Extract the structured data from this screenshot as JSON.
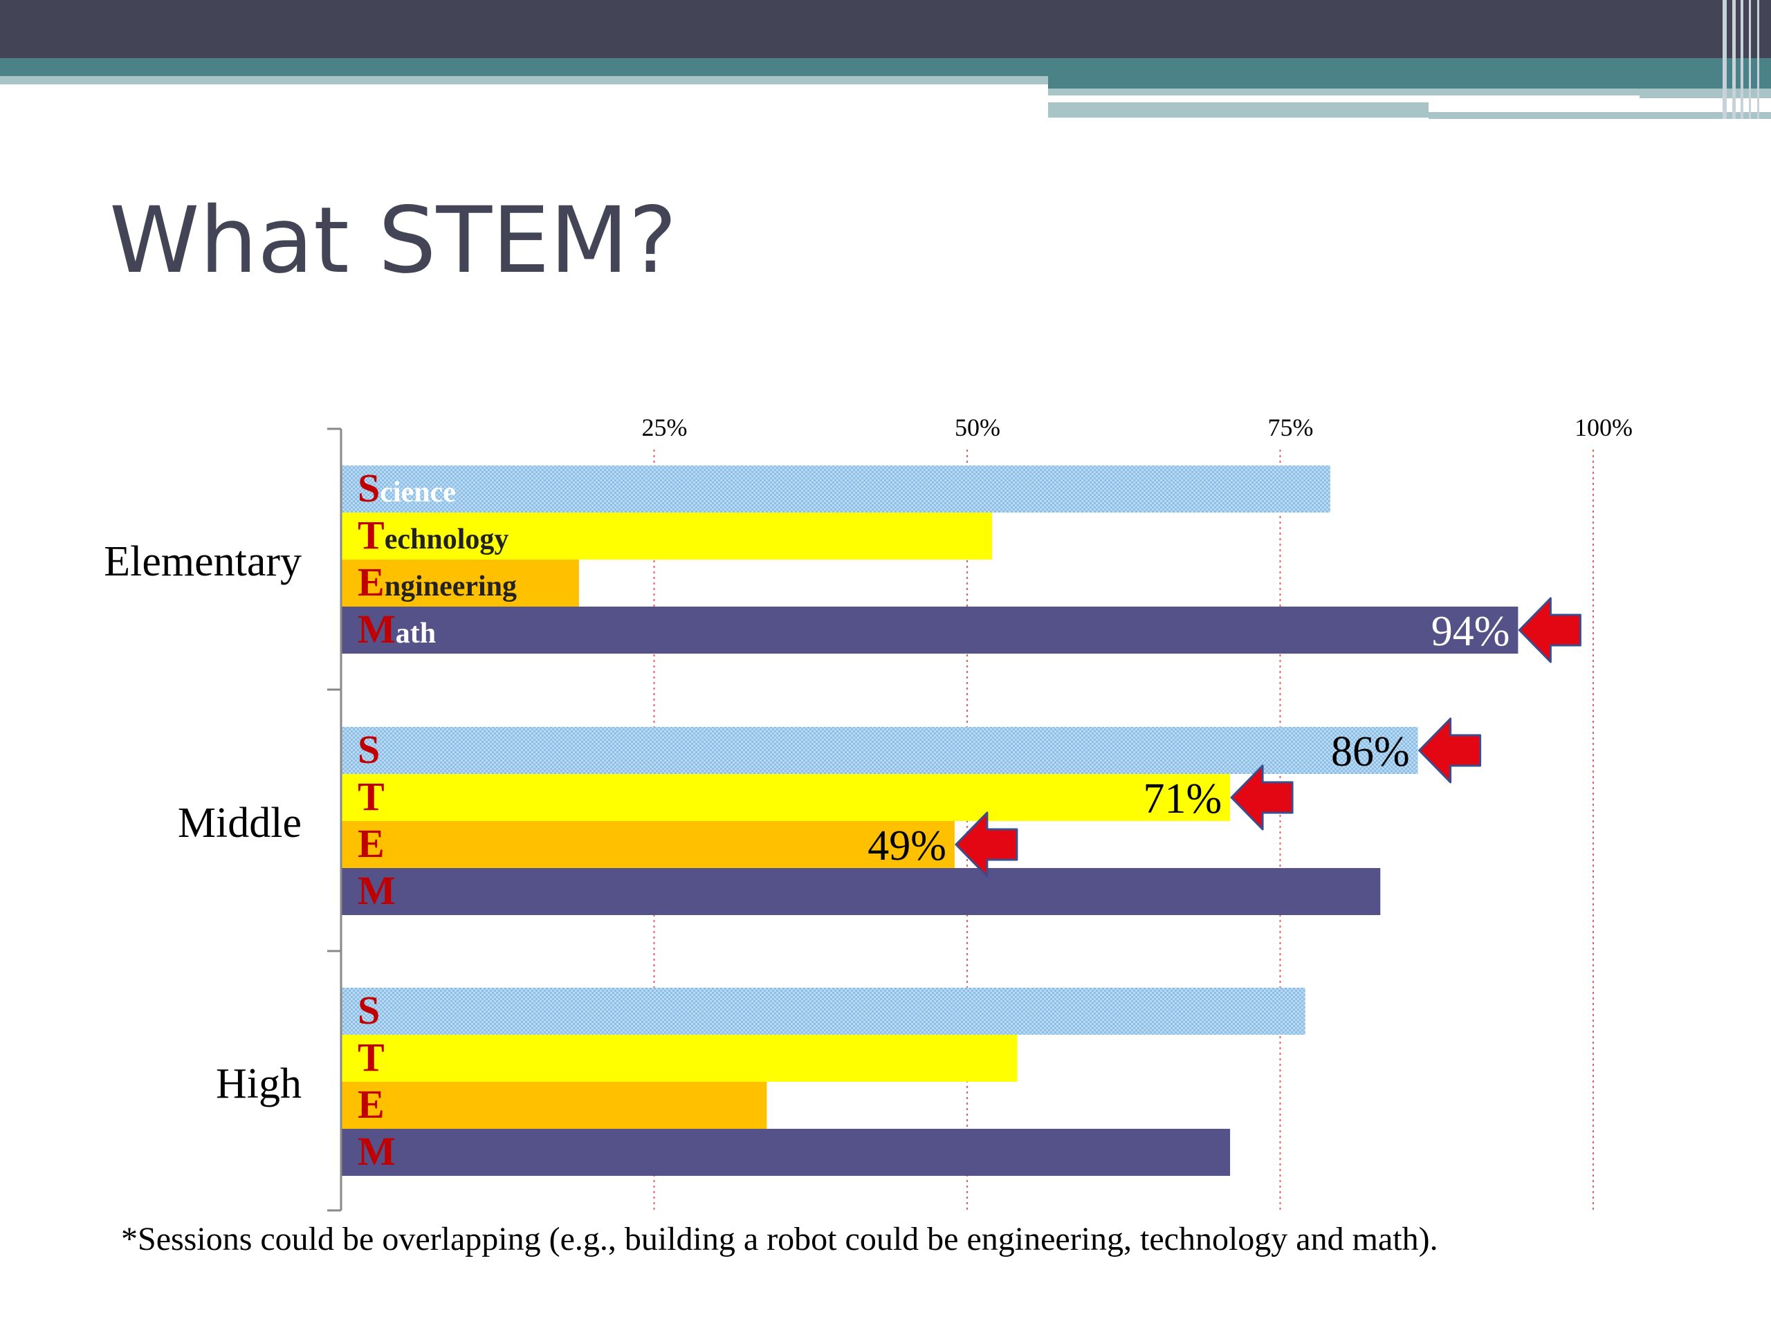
{
  "slide": {
    "title": "What STEM?",
    "footnote": "*Sessions could be overlapping (e.g., building a robot could be engineering, technology and math)."
  },
  "colors": {
    "header_dark": "#434557",
    "header_teal": "#4a8288",
    "header_light": "#a9c4c7",
    "title_text": "#434557",
    "science": "#8dbfe6",
    "technology": "#ffff00",
    "engineering": "#ffc000",
    "math": "#545288",
    "letter_red": "#c00000",
    "gridline": "#e06060",
    "arrow": "#e30613",
    "arrow_edge": "#3a4d8c"
  },
  "chart_data": {
    "type": "bar",
    "orientation": "horizontal",
    "categories": [
      "Elementary",
      "Middle",
      "High"
    ],
    "series": [
      {
        "key": "science",
        "name": "Science",
        "letter": "S",
        "values": [
          79,
          86,
          77
        ]
      },
      {
        "key": "technology",
        "name": "Technology",
        "letter": "T",
        "values": [
          52,
          71,
          54
        ]
      },
      {
        "key": "engineering",
        "name": "Engineering",
        "letter": "E",
        "values": [
          19,
          49,
          34
        ]
      },
      {
        "key": "math",
        "name": "Math",
        "letter": "M",
        "values": [
          94,
          83,
          71
        ]
      }
    ],
    "xlim": [
      0,
      100
    ],
    "x_ticks": [
      {
        "value": 25,
        "label": "25%"
      },
      {
        "value": 50,
        "label": "50%"
      },
      {
        "value": 75,
        "label": "75%"
      },
      {
        "value": 100,
        "label": "100%"
      }
    ],
    "grid": true,
    "grid_style": "dotted red vertical lines",
    "callouts": [
      {
        "category": "Elementary",
        "series": "math",
        "label": "94%",
        "label_color": "#ffffff"
      },
      {
        "category": "Middle",
        "series": "science",
        "label": "86%",
        "label_color": "#000000"
      },
      {
        "category": "Middle",
        "series": "technology",
        "label": "71%",
        "label_color": "#000000"
      },
      {
        "category": "Middle",
        "series": "engineering",
        "label": "49%",
        "label_color": "#000000"
      }
    ]
  }
}
